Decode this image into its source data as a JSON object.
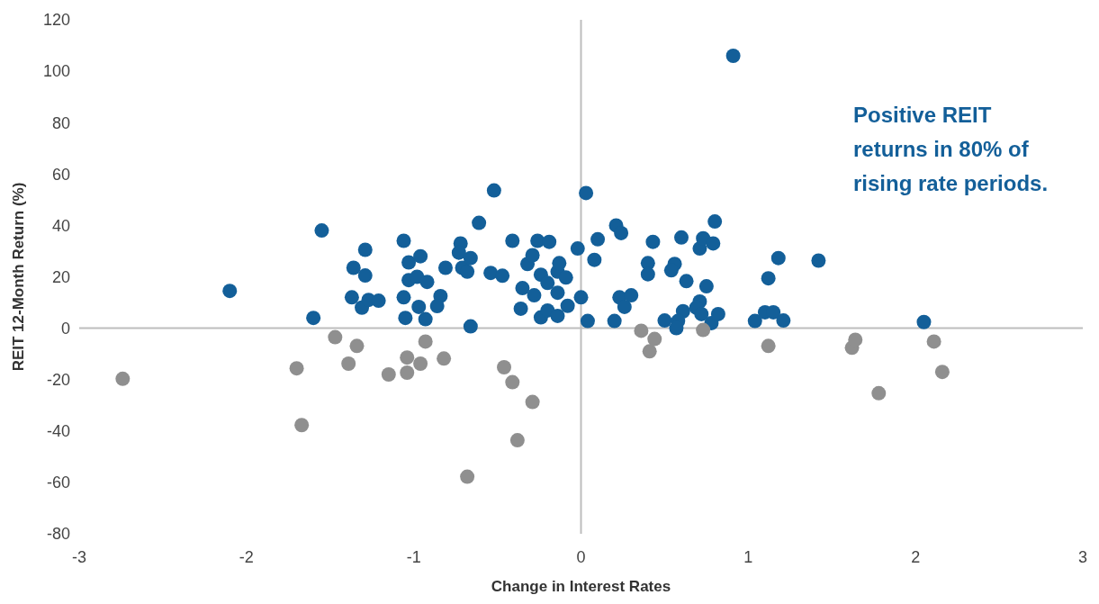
{
  "chart_data": {
    "type": "scatter",
    "xlabel": "Change in Interest Rates",
    "ylabel": "REIT 12-Month Return (%)",
    "annotations": [
      "Positive REIT\nreturns in 80% of\nrising rate periods."
    ],
    "xlim": [
      -3,
      3
    ],
    "ylim": [
      -80,
      120
    ],
    "xticks": [
      -3,
      -2,
      -1,
      0,
      1,
      2,
      3
    ],
    "yticks": [
      -80,
      -60,
      -40,
      -20,
      0,
      20,
      40,
      60,
      80,
      100,
      120
    ],
    "marker": "circle",
    "series": [
      {
        "color": "#135f99",
        "x": [
          -2.1,
          -1.55,
          -1.6,
          -1.36,
          -1.29,
          -1.29,
          -1.37,
          -1.31,
          -1.27,
          -1.21,
          -1.06,
          -1.03,
          -1.03,
          -1.06,
          -1.05,
          -0.98,
          -0.96,
          -0.97,
          -0.92,
          -0.93,
          -0.84,
          -0.86,
          -0.81,
          -0.72,
          -0.73,
          -0.71,
          -0.68,
          -0.66,
          -0.66,
          -0.61,
          -0.52,
          -0.54,
          -0.47,
          -0.41,
          -0.36,
          -0.35,
          -0.32,
          -0.29,
          -0.26,
          -0.28,
          -0.24,
          -0.24,
          -0.2,
          -0.19,
          -0.2,
          -0.14,
          -0.13,
          -0.14,
          -0.14,
          -0.09,
          -0.08,
          -0.02,
          0,
          0.03,
          0.04,
          0.1,
          0.08,
          0.21,
          0.24,
          0.23,
          0.26,
          0.3,
          0.2,
          0.43,
          0.4,
          0.4,
          0.5,
          0.56,
          0.54,
          0.6,
          0.63,
          0.61,
          0.58,
          0.57,
          0.71,
          0.69,
          0.71,
          0.73,
          0.8,
          0.79,
          0.75,
          0.72,
          0.78,
          0.82,
          0.91,
          1.04,
          1.1,
          1.12,
          1.15,
          1.18,
          1.21,
          1.42,
          2.05
        ],
        "values": [
          14.5,
          38,
          4,
          23.5,
          30.5,
          20.5,
          12,
          8,
          11,
          10.7,
          34,
          25.6,
          18.7,
          12,
          4,
          20,
          28,
          8.3,
          18,
          3.5,
          12.5,
          8.6,
          23.5,
          33,
          29.4,
          23.5,
          22,
          27.3,
          0.7,
          41,
          53.6,
          21.5,
          20.4,
          34,
          7.6,
          15.6,
          25,
          28.4,
          34,
          12.8,
          20.8,
          4.2,
          17.6,
          33.6,
          6.9,
          22,
          25.3,
          13.8,
          4.8,
          19.7,
          8.7,
          31,
          12,
          52.6,
          2.8,
          34.6,
          26.6,
          40,
          37,
          12,
          8.3,
          12.8,
          2.8,
          33.6,
          25.3,
          21,
          3,
          25,
          22.5,
          35.3,
          18.3,
          6.6,
          2.8,
          0,
          10.4,
          8,
          31,
          35,
          41.5,
          33,
          16.3,
          5.5,
          2,
          5.5,
          106,
          2.8,
          6.2,
          19.4,
          6.2,
          27.3,
          3,
          26.3,
          2.4
        ]
      },
      {
        "color": "#8f8f8f",
        "x": [
          -2.74,
          -1.7,
          -1.67,
          -1.47,
          -1.39,
          -1.34,
          -1.15,
          -1.04,
          -1.04,
          -0.96,
          -0.93,
          -0.82,
          -0.68,
          -0.46,
          -0.41,
          -0.38,
          -0.29,
          0.36,
          0.41,
          0.44,
          0.73,
          1.12,
          1.62,
          1.64,
          1.78,
          2.11,
          2.16
        ],
        "values": [
          -19.7,
          -15.6,
          -37.7,
          -3.5,
          -13.8,
          -6.9,
          -18,
          -11.4,
          -17.3,
          -13.8,
          -5.2,
          -11.8,
          -57.8,
          -15.2,
          -21,
          -43.6,
          -28.7,
          -1,
          -9,
          -4.2,
          -0.7,
          -6.9,
          -7.6,
          -4.5,
          -25.3,
          -5.2,
          -17
        ]
      }
    ]
  }
}
